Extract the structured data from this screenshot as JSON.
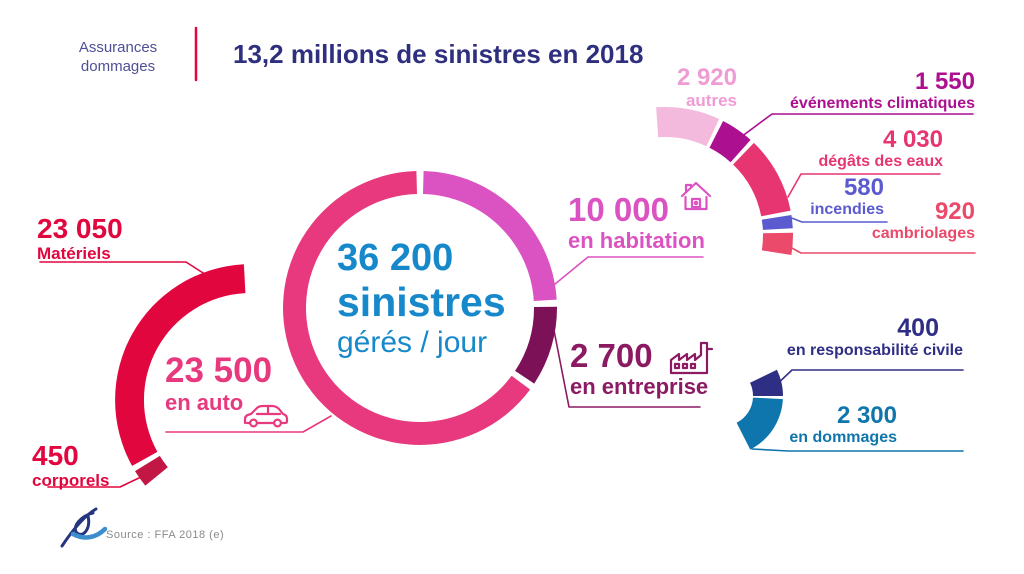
{
  "header": {
    "brand_line1": "Assurances",
    "brand_line2": "dommages",
    "title": "13,2 millions de sinistres en 2018"
  },
  "center": {
    "value": "36 200",
    "unit": "sinistres",
    "sublabel": "gérés / jour"
  },
  "labels": {
    "materiels": {
      "value": "23 050",
      "label": "Matériels"
    },
    "corporels": {
      "value": "450",
      "label": "corporels"
    },
    "auto": {
      "value": "23 500",
      "label": "en auto"
    },
    "habitation": {
      "value": "10 000",
      "label": "en habitation"
    },
    "entreprise": {
      "value": "2 700",
      "label": "en entreprise"
    },
    "autres": {
      "value": "2 920",
      "label": "autres"
    },
    "evenements": {
      "value": "1 550",
      "label": "événements climatiques"
    },
    "degats": {
      "value": "4 030",
      "label": "dégâts des eaux"
    },
    "incendies": {
      "value": "580",
      "label": "incendies"
    },
    "cambriolages": {
      "value": "920",
      "label": "cambriolages"
    },
    "responsabilite": {
      "value": "400",
      "label": "en responsabilité civile"
    },
    "dommages": {
      "value": "2 300",
      "label": "en dommages"
    }
  },
  "footer": {
    "source": "Source : FFA 2018 (e)"
  },
  "colors": {
    "red": "#E2063F",
    "darkRed": "#C21744",
    "pink": "#E8397E",
    "orchid": "#DB53C2",
    "plumSegment": "#7C1158",
    "plum": "#8C1A63",
    "palePink": "#F4BADD",
    "palePinkText": "#F09CD4",
    "magenta": "#AC0F90",
    "rose": "#E73571",
    "violet": "#5B5ACF",
    "coral": "#EB4A6B",
    "navy": "#2E2E85",
    "blue": "#0F76AD",
    "titleNavy": "#2F2F7F",
    "brandSlate": "#4F4F96",
    "centerBlue": "#1789CB",
    "sourceGray": "#8A8A8A",
    "logoNavy": "#26357F",
    "logoBlue": "#3D8ECC"
  },
  "chart_data": [
    {
      "type": "pie",
      "subtype": "donut",
      "title": "36 200 sinistres gérés / jour",
      "total": 36200,
      "legend_position": "none",
      "series": [
        {
          "name": "en auto",
          "value": 23500,
          "color_key": "pink"
        },
        {
          "name": "en habitation",
          "value": 10000,
          "color_key": "orchid"
        },
        {
          "name": "en entreprise",
          "value": 2700,
          "color_key": "plumSegment"
        }
      ]
    },
    {
      "type": "pie",
      "subtype": "arc-breakdown",
      "title": "en auto",
      "total": 23500,
      "series": [
        {
          "name": "Matériels",
          "value": 23050,
          "color_key": "red"
        },
        {
          "name": "corporels",
          "value": 450,
          "color_key": "darkRed"
        }
      ]
    },
    {
      "type": "pie",
      "subtype": "arc-breakdown",
      "title": "en habitation",
      "total": 10000,
      "series": [
        {
          "name": "autres",
          "value": 2920,
          "color_key": "palePink"
        },
        {
          "name": "événements climatiques",
          "value": 1550,
          "color_key": "magenta"
        },
        {
          "name": "dégâts des eaux",
          "value": 4030,
          "color_key": "rose"
        },
        {
          "name": "incendies",
          "value": 580,
          "color_key": "violet"
        },
        {
          "name": "cambriolages",
          "value": 920,
          "color_key": "coral"
        }
      ]
    },
    {
      "type": "pie",
      "subtype": "arc-breakdown",
      "title": "en entreprise",
      "total": 2700,
      "series": [
        {
          "name": "en responsabilité civile",
          "value": 400,
          "color_key": "navy"
        },
        {
          "name": "en dommages",
          "value": 2300,
          "color_key": "blue"
        }
      ]
    }
  ]
}
